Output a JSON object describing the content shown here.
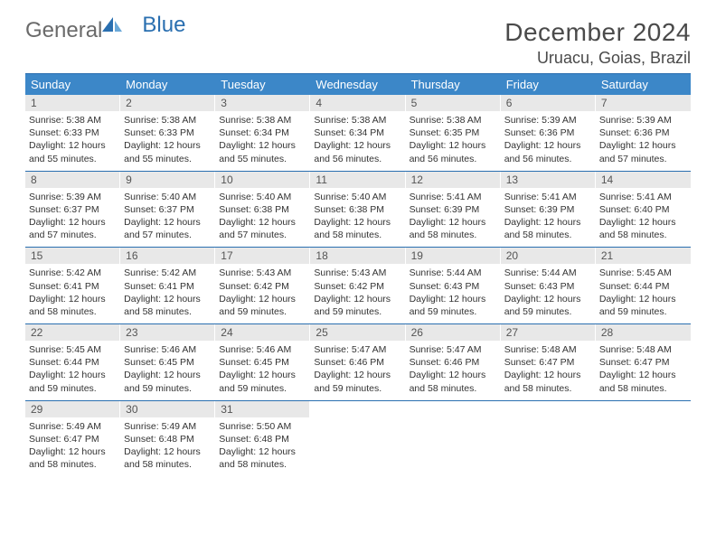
{
  "logo": {
    "text1": "General",
    "text2": "Blue"
  },
  "title": "December 2024",
  "location": "Uruacu, Goias, Brazil",
  "colors": {
    "header_bg": "#3c87c8",
    "header_text": "#ffffff",
    "daynum_bg": "#e8e8e8",
    "daynum_text": "#555555",
    "border": "#2a6fb0",
    "body_text": "#333333",
    "title_text": "#4a4a4a"
  },
  "day_headers": [
    "Sunday",
    "Monday",
    "Tuesday",
    "Wednesday",
    "Thursday",
    "Friday",
    "Saturday"
  ],
  "weeks": [
    [
      {
        "n": "1",
        "sr": "5:38 AM",
        "ss": "6:33 PM",
        "dl": "12 hours and 55 minutes."
      },
      {
        "n": "2",
        "sr": "5:38 AM",
        "ss": "6:33 PM",
        "dl": "12 hours and 55 minutes."
      },
      {
        "n": "3",
        "sr": "5:38 AM",
        "ss": "6:34 PM",
        "dl": "12 hours and 55 minutes."
      },
      {
        "n": "4",
        "sr": "5:38 AM",
        "ss": "6:34 PM",
        "dl": "12 hours and 56 minutes."
      },
      {
        "n": "5",
        "sr": "5:38 AM",
        "ss": "6:35 PM",
        "dl": "12 hours and 56 minutes."
      },
      {
        "n": "6",
        "sr": "5:39 AM",
        "ss": "6:36 PM",
        "dl": "12 hours and 56 minutes."
      },
      {
        "n": "7",
        "sr": "5:39 AM",
        "ss": "6:36 PM",
        "dl": "12 hours and 57 minutes."
      }
    ],
    [
      {
        "n": "8",
        "sr": "5:39 AM",
        "ss": "6:37 PM",
        "dl": "12 hours and 57 minutes."
      },
      {
        "n": "9",
        "sr": "5:40 AM",
        "ss": "6:37 PM",
        "dl": "12 hours and 57 minutes."
      },
      {
        "n": "10",
        "sr": "5:40 AM",
        "ss": "6:38 PM",
        "dl": "12 hours and 57 minutes."
      },
      {
        "n": "11",
        "sr": "5:40 AM",
        "ss": "6:38 PM",
        "dl": "12 hours and 58 minutes."
      },
      {
        "n": "12",
        "sr": "5:41 AM",
        "ss": "6:39 PM",
        "dl": "12 hours and 58 minutes."
      },
      {
        "n": "13",
        "sr": "5:41 AM",
        "ss": "6:39 PM",
        "dl": "12 hours and 58 minutes."
      },
      {
        "n": "14",
        "sr": "5:41 AM",
        "ss": "6:40 PM",
        "dl": "12 hours and 58 minutes."
      }
    ],
    [
      {
        "n": "15",
        "sr": "5:42 AM",
        "ss": "6:41 PM",
        "dl": "12 hours and 58 minutes."
      },
      {
        "n": "16",
        "sr": "5:42 AM",
        "ss": "6:41 PM",
        "dl": "12 hours and 58 minutes."
      },
      {
        "n": "17",
        "sr": "5:43 AM",
        "ss": "6:42 PM",
        "dl": "12 hours and 59 minutes."
      },
      {
        "n": "18",
        "sr": "5:43 AM",
        "ss": "6:42 PM",
        "dl": "12 hours and 59 minutes."
      },
      {
        "n": "19",
        "sr": "5:44 AM",
        "ss": "6:43 PM",
        "dl": "12 hours and 59 minutes."
      },
      {
        "n": "20",
        "sr": "5:44 AM",
        "ss": "6:43 PM",
        "dl": "12 hours and 59 minutes."
      },
      {
        "n": "21",
        "sr": "5:45 AM",
        "ss": "6:44 PM",
        "dl": "12 hours and 59 minutes."
      }
    ],
    [
      {
        "n": "22",
        "sr": "5:45 AM",
        "ss": "6:44 PM",
        "dl": "12 hours and 59 minutes."
      },
      {
        "n": "23",
        "sr": "5:46 AM",
        "ss": "6:45 PM",
        "dl": "12 hours and 59 minutes."
      },
      {
        "n": "24",
        "sr": "5:46 AM",
        "ss": "6:45 PM",
        "dl": "12 hours and 59 minutes."
      },
      {
        "n": "25",
        "sr": "5:47 AM",
        "ss": "6:46 PM",
        "dl": "12 hours and 59 minutes."
      },
      {
        "n": "26",
        "sr": "5:47 AM",
        "ss": "6:46 PM",
        "dl": "12 hours and 58 minutes."
      },
      {
        "n": "27",
        "sr": "5:48 AM",
        "ss": "6:47 PM",
        "dl": "12 hours and 58 minutes."
      },
      {
        "n": "28",
        "sr": "5:48 AM",
        "ss": "6:47 PM",
        "dl": "12 hours and 58 minutes."
      }
    ],
    [
      {
        "n": "29",
        "sr": "5:49 AM",
        "ss": "6:47 PM",
        "dl": "12 hours and 58 minutes."
      },
      {
        "n": "30",
        "sr": "5:49 AM",
        "ss": "6:48 PM",
        "dl": "12 hours and 58 minutes."
      },
      {
        "n": "31",
        "sr": "5:50 AM",
        "ss": "6:48 PM",
        "dl": "12 hours and 58 minutes."
      },
      null,
      null,
      null,
      null
    ]
  ],
  "labels": {
    "sunrise": "Sunrise:",
    "sunset": "Sunset:",
    "daylight": "Daylight:"
  }
}
